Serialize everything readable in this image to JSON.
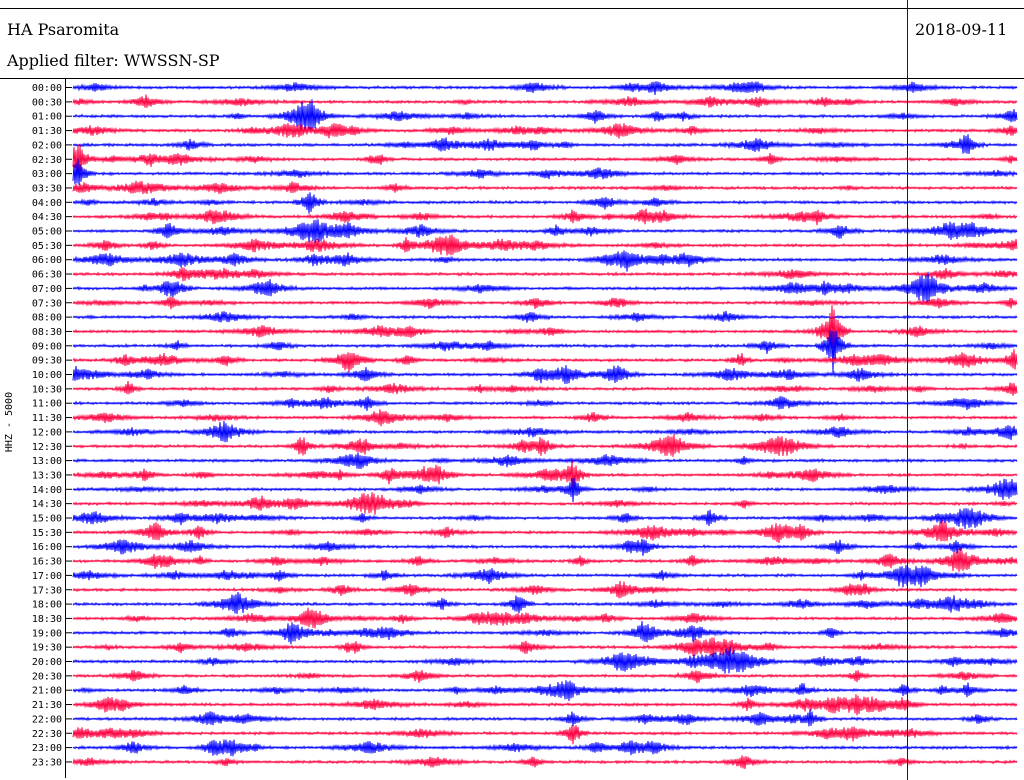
{
  "header": {
    "station": "HA Psaromita",
    "filter_label": "Applied filter: WWSSN-SP",
    "date": "2018-09-11"
  },
  "channel_label": "HHZ - 5000",
  "chart_data": {
    "type": "line",
    "title": "HA Psaromita",
    "subtitle": "Applied filter: WWSSN-SP",
    "date": "2018-09-11",
    "ylabel": "HHZ - 5000",
    "trace_colors": [
      "#0000ff",
      "#ff0040"
    ],
    "current_time_marker_color": "#0000ff",
    "row_labels": [
      "00:00",
      "00:30",
      "01:00",
      "01:30",
      "02:00",
      "02:30",
      "03:00",
      "03:30",
      "04:00",
      "04:30",
      "05:00",
      "05:30",
      "06:00",
      "06:30",
      "07:00",
      "07:30",
      "08:00",
      "08:30",
      "09:00",
      "09:30",
      "10:00",
      "10:30",
      "11:00",
      "11:30",
      "12:00",
      "12:30",
      "13:00",
      "13:30",
      "14:00",
      "14:30",
      "15:00",
      "15:30",
      "16:00",
      "16:30",
      "17:00",
      "17:30",
      "18:00",
      "18:30",
      "19:00",
      "19:30",
      "20:00",
      "20:30",
      "21:00",
      "21:30",
      "22:00",
      "22:30",
      "23:00",
      "23:30"
    ]
  }
}
